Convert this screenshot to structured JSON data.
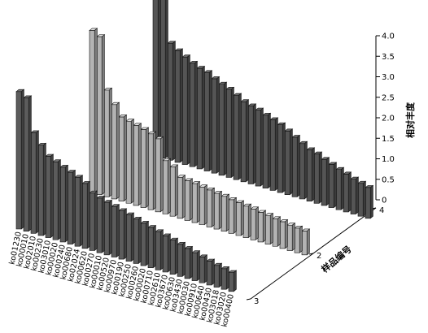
{
  "chart_data": {
    "type": "bar",
    "title": "",
    "zlabel": "相对丰度",
    "ylabel": "样品编号",
    "zlim": [
      0,
      4.0
    ],
    "z_ticks": [
      "0",
      "0.5",
      "1.0",
      "1.5",
      "2.0",
      "2.5",
      "3.0",
      "3.5",
      "4.0"
    ],
    "y_ticks": [
      "4",
      "2",
      "3"
    ],
    "categories": [
      "ko01230",
      "ko00010",
      "ko02010",
      "ko00230",
      "ko03010",
      "ko00020",
      "ko00240",
      "ko00680",
      "ko02024",
      "ko00620",
      "ko00270",
      "ko00010",
      "ko00520",
      "ko00970",
      "ko00190",
      "ko00250",
      "ko00260",
      "ko00020",
      "ko00710",
      "ko02610",
      "ko03670",
      "ko00630",
      "ko03430",
      "ko00030",
      "ko00910",
      "ko00640",
      "ko00430",
      "ko03018",
      "ko03020",
      "ko00400"
    ],
    "series": [
      {
        "sample": "4",
        "color": "#555555",
        "values": [
          4.0,
          3.9,
          2.85,
          2.72,
          2.62,
          2.52,
          2.45,
          2.4,
          2.3,
          2.22,
          2.15,
          2.05,
          1.95,
          1.9,
          1.85,
          1.78,
          1.72,
          1.65,
          1.55,
          1.45,
          1.35,
          1.25,
          1.2,
          1.12,
          1.05,
          0.98,
          0.92,
          0.85,
          0.8,
          0.75
        ]
      },
      {
        "sample": "2",
        "color": "#b3b3b3",
        "values": [
          3.95,
          3.85,
          2.6,
          2.3,
          2.05,
          2.0,
          1.95,
          1.9,
          1.85,
          1.78,
          1.3,
          1.2,
          1.0,
          0.97,
          0.95,
          0.92,
          0.9,
          0.87,
          0.85,
          0.82,
          0.8,
          0.77,
          0.75,
          0.72,
          0.7,
          0.67,
          0.65,
          0.62,
          0.6,
          0.58
        ]
      },
      {
        "sample": "3",
        "color": "#5c5c5c",
        "values": [
          3.35,
          3.25,
          2.45,
          2.2,
          1.98,
          1.9,
          1.82,
          1.75,
          1.68,
          1.58,
          1.4,
          1.33,
          1.28,
          1.23,
          1.18,
          1.13,
          1.08,
          1.03,
          0.98,
          0.93,
          0.88,
          0.83,
          0.78,
          0.73,
          0.68,
          0.63,
          0.58,
          0.53,
          0.5,
          0.46
        ]
      }
    ]
  }
}
